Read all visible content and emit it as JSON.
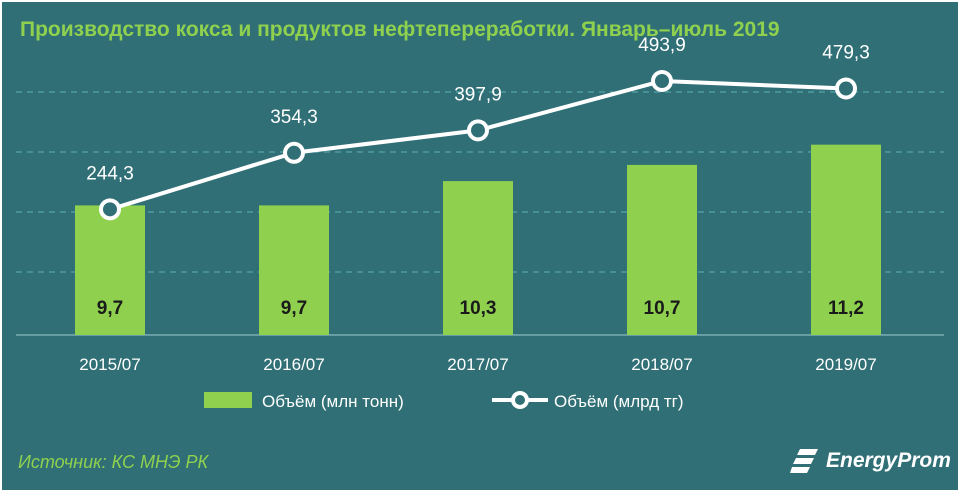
{
  "title": "Производство кокса и продуктов нефтепереработки. Январь–июль  2019",
  "source": "Источник: КС МНЭ РК",
  "logo_text": "EnergyProm",
  "colors": {
    "background": "#2f6f75",
    "bar": "#8fd14f",
    "line": "#ffffff",
    "title": "#8fd14f"
  },
  "chart_data": {
    "type": "bar+line",
    "categories": [
      "2015/07",
      "2016/07",
      "2017/07",
      "2018/07",
      "2019/07"
    ],
    "series": [
      {
        "name": "Объём (млн тонн)",
        "type": "bar",
        "values": [
          9.7,
          9.7,
          10.3,
          10.7,
          11.2
        ],
        "labels": [
          "9,7",
          "9,7",
          "10,3",
          "10,7",
          "11,2"
        ]
      },
      {
        "name": "Объём (млрд тг)",
        "type": "line",
        "values": [
          244.3,
          354.3,
          397.9,
          493.9,
          479.3
        ],
        "labels": [
          "244,3",
          "354,3",
          "397,9",
          "493,9",
          "479,3"
        ]
      }
    ],
    "grid": true,
    "legend_position": "bottom"
  }
}
